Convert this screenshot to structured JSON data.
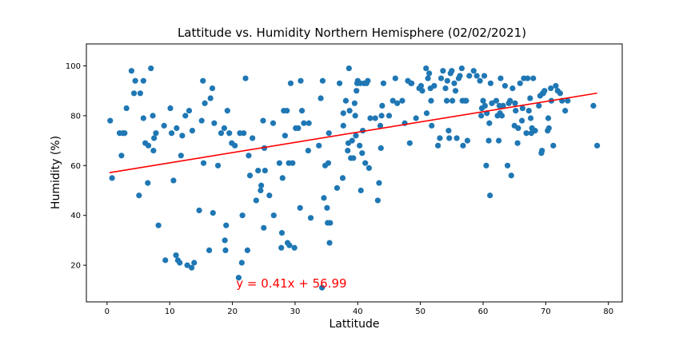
{
  "chart_data": {
    "type": "scatter",
    "title": "Lattitude vs. Humidity Northern Hemisphere (02/02/2021)",
    "xlabel": "Lattitude",
    "ylabel": "Humidity (%)",
    "xlim": [
      -3.3,
      82.2
    ],
    "ylim": [
      5.3,
      108.8
    ],
    "xticks": [
      0,
      10,
      20,
      30,
      40,
      50,
      60,
      70,
      80
    ],
    "yticks": [
      20,
      40,
      60,
      80,
      100
    ],
    "grid": false,
    "point_color": "#1f77b4",
    "line_color": "#ff0000",
    "regression": {
      "slope": 0.41,
      "intercept": 56.99,
      "x_range": [
        0.4,
        78.2
      ],
      "equation": "y = 0.41x + 56.99",
      "equation_position": [
        20.6,
        11
      ]
    },
    "points": [
      [
        0.5,
        78
      ],
      [
        0.8,
        55
      ],
      [
        2,
        73
      ],
      [
        2.3,
        64
      ],
      [
        2.5,
        73
      ],
      [
        2.8,
        73
      ],
      [
        3.1,
        83
      ],
      [
        3.9,
        98
      ],
      [
        4.3,
        89
      ],
      [
        4.5,
        94
      ],
      [
        5.1,
        48
      ],
      [
        5.3,
        89
      ],
      [
        5.8,
        94
      ],
      [
        5.8,
        79
      ],
      [
        6.1,
        69
      ],
      [
        6.5,
        53
      ],
      [
        6.6,
        68
      ],
      [
        7,
        99
      ],
      [
        7.3,
        80
      ],
      [
        7.4,
        66
      ],
      [
        7.5,
        71
      ],
      [
        7.8,
        73
      ],
      [
        8.2,
        36
      ],
      [
        9.1,
        76
      ],
      [
        9.3,
        22
      ],
      [
        10.1,
        83
      ],
      [
        10.3,
        73
      ],
      [
        10.6,
        54
      ],
      [
        11,
        24
      ],
      [
        11.1,
        75
      ],
      [
        11.3,
        22
      ],
      [
        11.6,
        21
      ],
      [
        11.8,
        64
      ],
      [
        12,
        72
      ],
      [
        12.5,
        80
      ],
      [
        12.8,
        20
      ],
      [
        13.1,
        82
      ],
      [
        13.5,
        19
      ],
      [
        13.6,
        74
      ],
      [
        13.9,
        21
      ],
      [
        14.7,
        42
      ],
      [
        15.1,
        78
      ],
      [
        15.3,
        94
      ],
      [
        15.4,
        61
      ],
      [
        15.6,
        85
      ],
      [
        16.3,
        26
      ],
      [
        16.5,
        87
      ],
      [
        16.8,
        91
      ],
      [
        16.9,
        41
      ],
      [
        17.1,
        77
      ],
      [
        17.7,
        60
      ],
      [
        18.2,
        73
      ],
      [
        18.7,
        75
      ],
      [
        18.8,
        30
      ],
      [
        18.9,
        26
      ],
      [
        19,
        36
      ],
      [
        19.2,
        82
      ],
      [
        19.5,
        73
      ],
      [
        19.9,
        69
      ],
      [
        20.4,
        68
      ],
      [
        21,
        15
      ],
      [
        21.2,
        73
      ],
      [
        21.5,
        21
      ],
      [
        21.6,
        40
      ],
      [
        21.8,
        73
      ],
      [
        22.1,
        95
      ],
      [
        22.4,
        26
      ],
      [
        22.6,
        64
      ],
      [
        22.8,
        56
      ],
      [
        23.2,
        71
      ],
      [
        23.8,
        46
      ],
      [
        24.1,
        58
      ],
      [
        24.5,
        50
      ],
      [
        24.6,
        52
      ],
      [
        24.9,
        78
      ],
      [
        25,
        35
      ],
      [
        25.1,
        67
      ],
      [
        25.2,
        58
      ],
      [
        25.9,
        48
      ],
      [
        26.5,
        77
      ],
      [
        26.6,
        40
      ],
      [
        27.5,
        61
      ],
      [
        27.8,
        27
      ],
      [
        27.9,
        33
      ],
      [
        28,
        55
      ],
      [
        28.2,
        82
      ],
      [
        28.4,
        72
      ],
      [
        28.7,
        82
      ],
      [
        28.8,
        29
      ],
      [
        29,
        61
      ],
      [
        29.1,
        28
      ],
      [
        29.3,
        93
      ],
      [
        29.6,
        61
      ],
      [
        29.9,
        27
      ],
      [
        30.1,
        75
      ],
      [
        30.5,
        75
      ],
      [
        30.8,
        43
      ],
      [
        30.9,
        94
      ],
      [
        31.1,
        82
      ],
      [
        31.4,
        77
      ],
      [
        32.1,
        66
      ],
      [
        32.2,
        77
      ],
      [
        32.5,
        39
      ],
      [
        33.8,
        68
      ],
      [
        34.1,
        87
      ],
      [
        34.3,
        11
      ],
      [
        34.4,
        94
      ],
      [
        34.6,
        47
      ],
      [
        34.8,
        60
      ],
      [
        35.1,
        43
      ],
      [
        35.2,
        37
      ],
      [
        35.3,
        61
      ],
      [
        35.4,
        73
      ],
      [
        35.5,
        29
      ],
      [
        35.6,
        37
      ],
      [
        36.7,
        51
      ],
      [
        37.1,
        93
      ],
      [
        37.6,
        55
      ],
      [
        37.7,
        81
      ],
      [
        37.7,
        76
      ],
      [
        38.1,
        86
      ],
      [
        38.4,
        66
      ],
      [
        38.5,
        69
      ],
      [
        38.6,
        99
      ],
      [
        38.7,
        82
      ],
      [
        38.9,
        63
      ],
      [
        39.1,
        70
      ],
      [
        39.3,
        63
      ],
      [
        39.5,
        85
      ],
      [
        39.6,
        80
      ],
      [
        39.7,
        72
      ],
      [
        39.8,
        90
      ],
      [
        39.9,
        93
      ],
      [
        40,
        94
      ],
      [
        40.3,
        68
      ],
      [
        40.4,
        93
      ],
      [
        40.5,
        50
      ],
      [
        40.7,
        65
      ],
      [
        40.8,
        74
      ],
      [
        41,
        93
      ],
      [
        41.2,
        61
      ],
      [
        41.4,
        93
      ],
      [
        41.6,
        94
      ],
      [
        41.8,
        59
      ],
      [
        42,
        79
      ],
      [
        42.8,
        79
      ],
      [
        43.2,
        46
      ],
      [
        43.4,
        53
      ],
      [
        43.6,
        76
      ],
      [
        43.7,
        67
      ],
      [
        43.8,
        80
      ],
      [
        43.9,
        84
      ],
      [
        44.1,
        93
      ],
      [
        45,
        80
      ],
      [
        45.6,
        86
      ],
      [
        46,
        95
      ],
      [
        46.3,
        85
      ],
      [
        47.1,
        86
      ],
      [
        47.5,
        77
      ],
      [
        48,
        94
      ],
      [
        48.3,
        69
      ],
      [
        48.5,
        93
      ],
      [
        48.6,
        93
      ],
      [
        49.3,
        79
      ],
      [
        49.8,
        91
      ],
      [
        50.1,
        92
      ],
      [
        50.3,
        90
      ],
      [
        50.9,
        99
      ],
      [
        51,
        81
      ],
      [
        51.2,
        95
      ],
      [
        51.4,
        97
      ],
      [
        51.6,
        91
      ],
      [
        51.7,
        86
      ],
      [
        51.8,
        76
      ],
      [
        52.2,
        92
      ],
      [
        52.8,
        68
      ],
      [
        53.1,
        71
      ],
      [
        53.3,
        95
      ],
      [
        53.6,
        98
      ],
      [
        54,
        91
      ],
      [
        54.2,
        86
      ],
      [
        54.3,
        94
      ],
      [
        54.5,
        74
      ],
      [
        54.6,
        71
      ],
      [
        54.8,
        97
      ],
      [
        55,
        98
      ],
      [
        55.1,
        86
      ],
      [
        55.4,
        93
      ],
      [
        55.6,
        90
      ],
      [
        55.8,
        71
      ],
      [
        56.1,
        95
      ],
      [
        56.3,
        96
      ],
      [
        56.6,
        99
      ],
      [
        56.7,
        86
      ],
      [
        56.8,
        68
      ],
      [
        57.1,
        86
      ],
      [
        57.3,
        86
      ],
      [
        57.5,
        70
      ],
      [
        57.8,
        96
      ],
      [
        58.5,
        98
      ],
      [
        59,
        96
      ],
      [
        59.5,
        94
      ],
      [
        59.7,
        80
      ],
      [
        59.8,
        83
      ],
      [
        60,
        86
      ],
      [
        60.2,
        96
      ],
      [
        60.3,
        84
      ],
      [
        60.5,
        60
      ],
      [
        60.6,
        81
      ],
      [
        60.9,
        70
      ],
      [
        61,
        77
      ],
      [
        61.1,
        48
      ],
      [
        61.2,
        93
      ],
      [
        61.4,
        85
      ],
      [
        62.1,
        86
      ],
      [
        62.3,
        80
      ],
      [
        62.5,
        70
      ],
      [
        62.6,
        84
      ],
      [
        62.7,
        81
      ],
      [
        62.8,
        95
      ],
      [
        63,
        80
      ],
      [
        63.2,
        84
      ],
      [
        63.5,
        92
      ],
      [
        63.9,
        60
      ],
      [
        64.1,
        85
      ],
      [
        64.3,
        86
      ],
      [
        64.5,
        56
      ],
      [
        64.7,
        91
      ],
      [
        65,
        76
      ],
      [
        65.1,
        85
      ],
      [
        65.2,
        82
      ],
      [
        65.5,
        69
      ],
      [
        65.6,
        75
      ],
      [
        65.9,
        93
      ],
      [
        66.2,
        78
      ],
      [
        66.3,
        83
      ],
      [
        66.5,
        95
      ],
      [
        66.9,
        73
      ],
      [
        67.1,
        95
      ],
      [
        67.3,
        82
      ],
      [
        67.5,
        87
      ],
      [
        67.6,
        79
      ],
      [
        67.7,
        73
      ],
      [
        67.8,
        75
      ],
      [
        68,
        95
      ],
      [
        68.3,
        74
      ],
      [
        68.9,
        84
      ],
      [
        69.1,
        88
      ],
      [
        69.3,
        65
      ],
      [
        69.4,
        66
      ],
      [
        69.5,
        89
      ],
      [
        69.6,
        89
      ],
      [
        69.8,
        90
      ],
      [
        70.3,
        74
      ],
      [
        70.4,
        79
      ],
      [
        70.5,
        75
      ],
      [
        70.8,
        91
      ],
      [
        70.9,
        86
      ],
      [
        71.2,
        68
      ],
      [
        71.6,
        92
      ],
      [
        71.9,
        90
      ],
      [
        72.3,
        89
      ],
      [
        72.6,
        86
      ],
      [
        73.1,
        82
      ],
      [
        73.5,
        86
      ],
      [
        77.6,
        84
      ],
      [
        78.2,
        68
      ]
    ]
  }
}
